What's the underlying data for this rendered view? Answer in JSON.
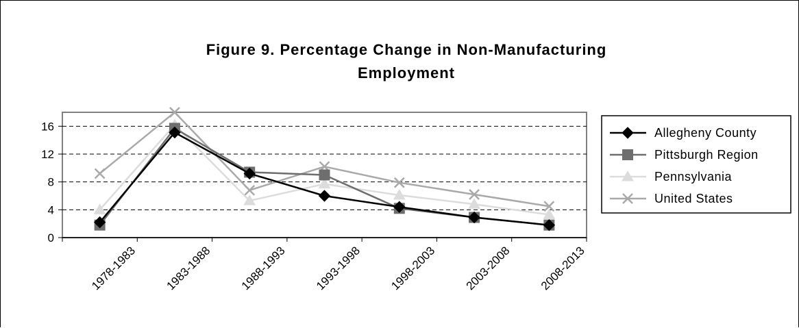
{
  "chart_data": {
    "type": "line",
    "title_line1": "Figure 9. Percentage Change in Non-Manufacturing",
    "title_line2": "Employment",
    "xlabel": "",
    "ylabel": "",
    "categories": [
      "1978-1983",
      "1983-1988",
      "1988-1993",
      "1993-1998",
      "1998-2003",
      "2003-2008",
      "2008-2013"
    ],
    "ylim": [
      0,
      18
    ],
    "yticks": [
      "0",
      "4",
      "8",
      "12",
      "16"
    ],
    "grid": "horizontal dashed",
    "legend_position": "right",
    "series": [
      {
        "name": "Allegheny County",
        "color": "#000000",
        "marker": "diamond",
        "values": [
          2.2,
          15.1,
          9.2,
          6.0,
          4.4,
          2.9,
          1.8
        ]
      },
      {
        "name": "Pittsburgh Region",
        "color": "#6e6e6e",
        "marker": "square",
        "values": [
          1.8,
          15.7,
          9.4,
          9.0,
          4.2,
          2.9,
          1.8
        ]
      },
      {
        "name": "Pennsylvania",
        "color": "#dcdcdc",
        "marker": "triangle",
        "values": [
          4.0,
          16.2,
          5.3,
          7.7,
          6.1,
          4.8,
          3.3
        ]
      },
      {
        "name": "United States",
        "color": "#a9a9a9",
        "marker": "x",
        "values": [
          9.2,
          18.0,
          6.8,
          10.2,
          7.9,
          6.2,
          4.5
        ]
      }
    ]
  }
}
